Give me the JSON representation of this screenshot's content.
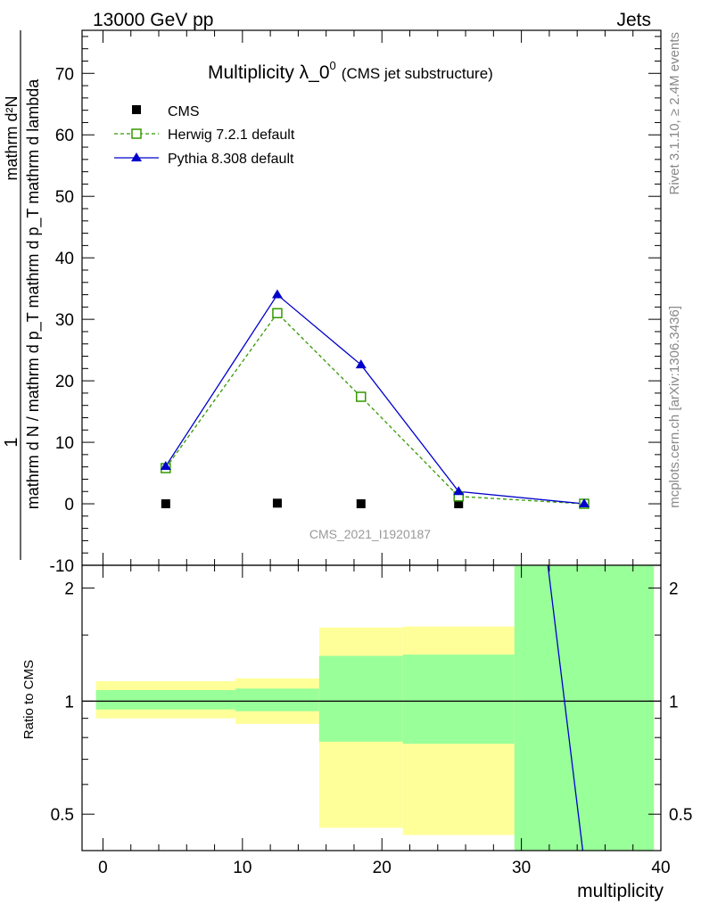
{
  "header": {
    "left": "13000 GeV pp",
    "right": "Jets"
  },
  "side_text": {
    "rivet": "Rivet 3.1.10, ≥ 2.4M events",
    "mcplots": "mcplots.cern.ch [arXiv:1306.3436]"
  },
  "chart_data": [
    {
      "type": "line",
      "title": "Multiplicity λ_0^0 (CMS jet substructure)",
      "title_main": "Multiplicity λ_0",
      "title_sup": "0",
      "title_suffix": "(CMS jet substructure)",
      "watermark": "CMS_2021_I1920187",
      "ylabel_numerator": "1",
      "ylabel_numerator_right": "mathrm d²N",
      "ylabel_denominator": "mathrm d N / mathrm d p_T mathrm d p_T mathrm d lambda",
      "ylim": [
        -10,
        77
      ],
      "xlim": [
        -1.5,
        40
      ],
      "yticks": [
        -10,
        0,
        10,
        20,
        30,
        40,
        50,
        60,
        70
      ],
      "legend_position": "top-left",
      "series": [
        {
          "name": "CMS",
          "color": "#000000",
          "marker": "square-filled",
          "x": [
            4.5,
            12.5,
            18.5,
            25.5,
            34.5
          ],
          "y": [
            0,
            0.1,
            0,
            0,
            0
          ]
        },
        {
          "name": "Herwig 7.2.1 default",
          "color": "#339900",
          "marker": "square-open",
          "line": "dashed",
          "x": [
            4.5,
            12.5,
            18.5,
            25.5,
            34.5
          ],
          "y": [
            5.8,
            31,
            17.4,
            1.2,
            0
          ]
        },
        {
          "name": "Pythia 8.308 default",
          "color": "#0000cc",
          "marker": "triangle-filled",
          "line": "solid",
          "x": [
            4.5,
            12.5,
            18.5,
            25.5,
            34.5
          ],
          "y": [
            6.1,
            34,
            22.6,
            2,
            0
          ]
        }
      ]
    },
    {
      "type": "area",
      "ylabel": "Ratio to CMS",
      "xlabel": "multiplicity",
      "ylim": [
        0.4,
        2.3
      ],
      "scale": "log",
      "xlim": [
        -1.5,
        40
      ],
      "xticks": [
        0,
        10,
        20,
        30,
        40
      ],
      "xtick_labels": [
        "0",
        "10",
        "20",
        "30",
        "40"
      ],
      "yticks": [
        0.5,
        1,
        2
      ],
      "ytick_labels": [
        "0.5",
        "1",
        "2"
      ],
      "bins": [
        {
          "x_low": -0.5,
          "x_high": 9.5,
          "band_inner": [
            0.95,
            1.07
          ],
          "band_outer": [
            0.9,
            1.13
          ]
        },
        {
          "x_low": 9.5,
          "x_high": 15.5,
          "band_inner": [
            0.94,
            1.08
          ],
          "band_outer": [
            0.87,
            1.15
          ]
        },
        {
          "x_low": 15.5,
          "x_high": 21.5,
          "band_inner": [
            0.78,
            1.32
          ],
          "band_outer": [
            0.46,
            1.57
          ]
        },
        {
          "x_low": 21.5,
          "x_high": 29.5,
          "band_inner": [
            0.77,
            1.33
          ],
          "band_outer": [
            0.44,
            1.58
          ]
        },
        {
          "x_low": 29.5,
          "x_high": 39.5,
          "band_inner": [
            0.4,
            2.3
          ],
          "band_outer": [
            0.4,
            2.3
          ]
        }
      ],
      "series": [
        {
          "name": "Pythia 8.308 default",
          "color": "#0000cc",
          "x": [
            31.9,
            34.4
          ],
          "y": [
            2.3,
            0.4
          ]
        }
      ],
      "band_colors": {
        "inner": "#99ff99",
        "outer": "#ffff99"
      }
    }
  ]
}
